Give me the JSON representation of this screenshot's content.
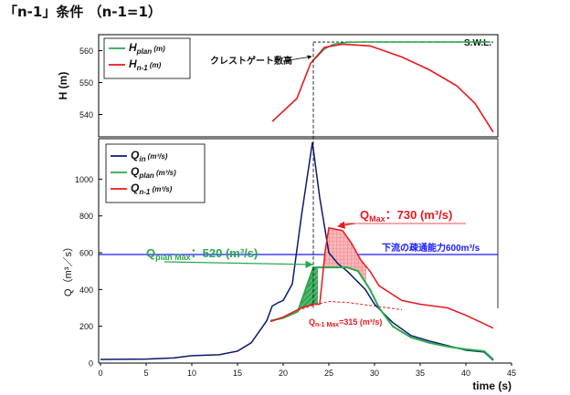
{
  "page": {
    "title": "「n-1」条件 （n-1=1）"
  },
  "chart_data": [
    {
      "type": "line",
      "panel": "upper",
      "ylabel": "H (m)",
      "xlim": [
        0,
        45
      ],
      "ylim": [
        533,
        565
      ],
      "yticks": [
        540,
        550,
        560
      ],
      "grid": false,
      "legend_position": "top-left",
      "legend": [
        {
          "main": "H",
          "sub": "plan",
          "unit": "(m)",
          "color": "#2aa84a",
          "dashed": false
        },
        {
          "main": "H",
          "sub": "n-1",
          "unit": "(m)",
          "color": "#e8181e",
          "dashed": false
        }
      ],
      "series": [
        {
          "name": "H plan (m)",
          "color": "#2aa84a",
          "x": [
            23.5,
            24.5,
            25.5,
            27,
            29,
            31,
            33,
            35,
            38,
            40,
            42.5
          ],
          "y": [
            557.5,
            560.5,
            562,
            562.6,
            562.7,
            562.7,
            562.7,
            562.7,
            562.7,
            562.7,
            562.7
          ]
        },
        {
          "name": "H n-1 (m)",
          "color": "#e8181e",
          "x": [
            18.8,
            21.5,
            23,
            24.5,
            26.5,
            29.5,
            33,
            36,
            39,
            41,
            43
          ],
          "y": [
            537.8,
            545,
            556,
            561,
            562,
            561.5,
            558,
            554,
            549,
            543.5,
            534.5
          ]
        }
      ],
      "swl": {
        "label": "S.W.L.",
        "y": 562.7,
        "x_start": 23.3,
        "x_end": 43,
        "color": "#2aa84a"
      },
      "crest": {
        "label": "クレストゲート敷高",
        "y": 562.5,
        "x": 23.3
      }
    },
    {
      "type": "line",
      "panel": "lower",
      "ylabel": "Q（m³／s）",
      "xlabel": "time (s)",
      "xlim": [
        0,
        45
      ],
      "ylim": [
        0,
        1220
      ],
      "xticks": [
        0,
        5,
        10,
        15,
        20,
        25,
        30,
        35,
        40,
        45
      ],
      "yticks": [
        0,
        200,
        400,
        600,
        800,
        1000
      ],
      "grid": false,
      "legend_position": "top-left",
      "legend": [
        {
          "main": "Q",
          "sub": "in",
          "unit": "(m³/s)",
          "color": "#0a1a6e",
          "dashed": false
        },
        {
          "main": "Q",
          "sub": "plan",
          "unit": "(m³/s)",
          "color": "#2aa84a",
          "dashed": false
        },
        {
          "main": "Q",
          "sub": "n-1",
          "unit": "(m³/s)",
          "color": "#e8181e",
          "dashed": false
        }
      ],
      "series": [
        {
          "name": "Q in (m³/s)",
          "color": "#0a1a6e",
          "x": [
            0,
            5,
            8,
            10,
            13,
            15,
            16.5,
            17.5,
            18.2,
            18.8,
            19.5,
            20,
            21,
            22,
            23.2,
            24,
            25,
            26,
            27,
            29,
            30,
            32,
            34,
            36,
            38,
            40,
            42,
            43
          ],
          "y": [
            20,
            22,
            28,
            40,
            45,
            65,
            110,
            180,
            230,
            310,
            330,
            340,
            430,
            800,
            1200,
            900,
            600,
            540,
            500,
            400,
            320,
            220,
            150,
            120,
            95,
            70,
            60,
            15
          ]
        },
        {
          "name": "Q plan (m³/s)",
          "color": "#2aa84a",
          "x": [
            18.6,
            20,
            21.6,
            23.3,
            23.9,
            25,
            27,
            28.2,
            29.5,
            30.5,
            32,
            34,
            36,
            38,
            40,
            42,
            43
          ],
          "y": [
            230,
            245,
            280,
            520,
            520,
            520,
            520,
            500,
            400,
            300,
            200,
            140,
            110,
            90,
            75,
            65,
            20
          ]
        },
        {
          "name": "Q n-1 (m³/s)",
          "color": "#e8181e",
          "x": [
            18.6,
            20,
            22,
            23.3,
            24,
            24.6,
            25,
            26.5,
            27.5,
            28.5,
            29.5,
            30.5,
            33,
            35,
            38,
            40,
            43
          ],
          "y": [
            225,
            250,
            300,
            320,
            320,
            610,
            735,
            720,
            650,
            560,
            500,
            420,
            340,
            320,
            300,
            260,
            190
          ]
        }
      ],
      "dashed_series": {
        "name": "Q n-1 dashed",
        "color": "#e8181e",
        "x": [
          21.6,
          23.3,
          25,
          27,
          30,
          33
        ],
        "y": [
          285,
          315,
          335,
          330,
          310,
          290
        ]
      },
      "capacity_line": {
        "label": "下流の疎通能力600m³/s",
        "y": 590,
        "color": "#1a1aff"
      },
      "annotations": [
        {
          "text": "Q",
          "sub": "Max",
          "tail": "：730 (m³/s)",
          "color": "#e8181e"
        },
        {
          "text": "Q",
          "sub": "plan Max",
          "tail": "：520 (m³/s)",
          "color": "#2aa84a"
        },
        {
          "text": "Q",
          "sub": "n-1 Max",
          "tail": "=315 (m³/s)",
          "color": "#e8181e"
        }
      ]
    }
  ]
}
